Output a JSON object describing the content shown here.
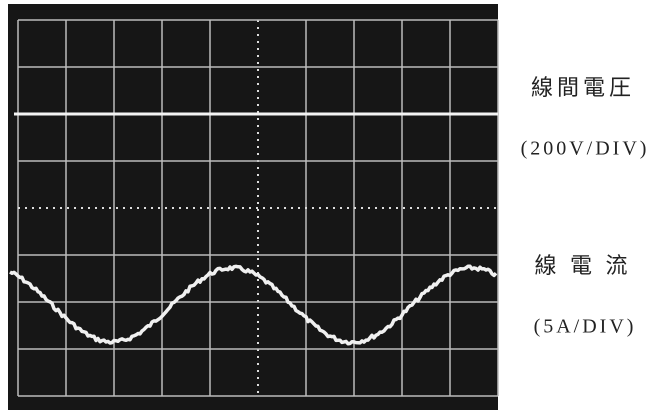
{
  "labels": {
    "voltage_title": "線間電圧",
    "voltage_scale": "(200V/DIV)",
    "current_title": "線 電 流",
    "current_scale": "(5A/DIV)"
  }
}
